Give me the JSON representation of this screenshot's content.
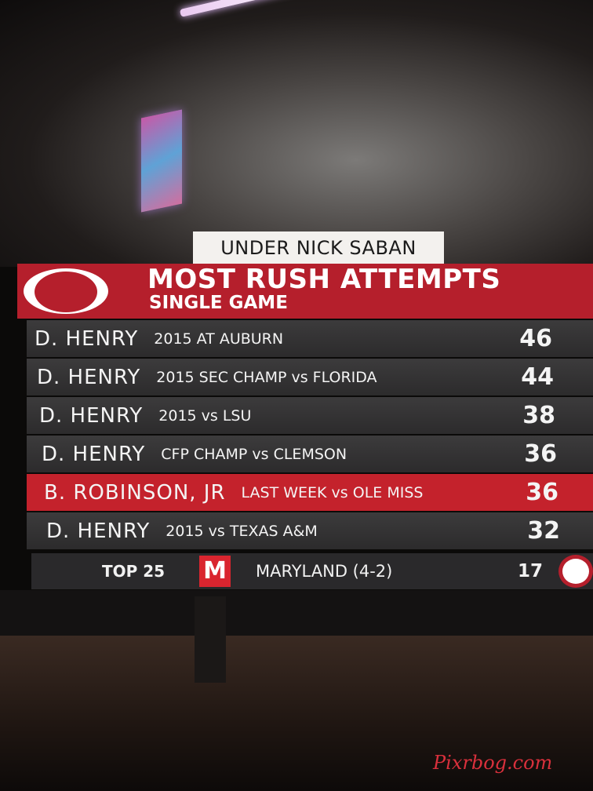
{
  "header": {
    "tag": "UNDER NICK SABAN",
    "title": "MOST RUSH ATTEMPTS",
    "subtitle": "SINGLE GAME"
  },
  "table": {
    "rows": [
      {
        "player": "D. HENRY",
        "game": "2015 AT AUBURN",
        "attempts": 46
      },
      {
        "player": "D. HENRY",
        "game": "2015 SEC CHAMP vs FLORIDA",
        "attempts": 44
      },
      {
        "player": "D. HENRY",
        "game": "2015 vs LSU",
        "attempts": 38
      },
      {
        "player": "D. HENRY",
        "game": "CFP CHAMP vs CLEMSON",
        "attempts": 36
      },
      {
        "player": "B. ROBINSON, JR",
        "game": "LAST WEEK vs OLE MISS",
        "attempts": 36,
        "highlight": true
      },
      {
        "player": "D. HENRY",
        "game": "2015 vs TEXAS A&M",
        "attempts": 32
      }
    ]
  },
  "ticker": {
    "label": "TOP 25",
    "logo": "M",
    "team": "MARYLAND (4-2)",
    "score": 17
  },
  "watermark": "Pixrbog.com"
}
